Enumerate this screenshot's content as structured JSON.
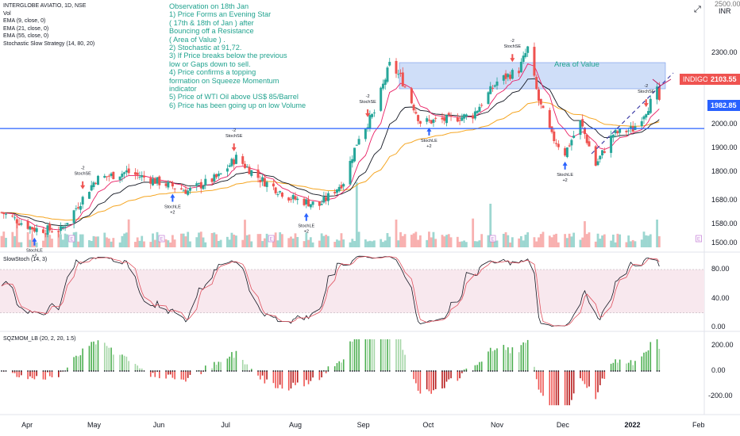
{
  "legend": {
    "symbol": "INTERGLOBE AVIATIO, 1D, NSE",
    "vol": "Vol",
    "ema9": "EMA (9, close, 0)",
    "ema21": "EMA (21, close, 0)",
    "ema55": "EMA (55, close, 0)",
    "strategy": "Stochastic Slow Strategy (14, 80, 20)"
  },
  "currency": "INR",
  "ticker_badge": "INDIGO",
  "last_price": "2103.55",
  "resistance_price": "1982.85",
  "top_partial_label": "2500.00",
  "area_label": "Area  of  Value",
  "notes": [
    "Observation on  18th  Jan",
    "1)  Price  Forms  an Evening Star",
    "( 17th  & 18th  of Jan )  after",
    "Bouncing  off  a Resistance",
    "( Area  of  Value  ) .",
    "2)   Stochastic  at  91,72.",
    "3)  If Price  breaks  below  the  previous",
    "low  or  Gaps down  to  sell.",
    "4)  Price  confirms  a  topping",
    "formation on Squeeze  Momentum",
    "indicator",
    "5) Price  of  WTI  Oil  above  US$ 85/Barrel",
    "6) Price  has  been  going up on low  Volume"
  ],
  "signals": {
    "le_label": "StochLE",
    "se_label": "StochSE",
    "qty_long": "+2",
    "qty_short": "-2"
  },
  "panes": {
    "slowstoch": "SlowStoch (14, 3)",
    "sqzmom": "SQZMOM_LB (20, 2, 20, 1.5)"
  },
  "colors": {
    "up": "#26a69a",
    "down": "#ef5350",
    "ema9": "#e91e63",
    "ema21": "#131722",
    "ema55": "#f5a623",
    "resistance": "#2962ff",
    "area": "#bbd0f5",
    "stoch_k": "#131722",
    "stoch_d": "#e0525f",
    "band": "#f8e8ee",
    "sqz_up_strong": "#4caf50",
    "sqz_up_weak": "#a5d6a7",
    "sqz_dn_strong": "#ef5350",
    "sqz_dn_weak": "#b71c1c"
  },
  "chart_data": [
    {
      "type": "candlestick",
      "title": "INTERGLOBE AVIATIO, 1D, NSE",
      "ylim": [
        1450,
        2500
      ],
      "y_ticks": [
        1500,
        1580,
        1680,
        1800,
        1900,
        2000,
        2300
      ],
      "y_tick_labels": [
        "1500.00",
        "1580.00",
        "1680.00",
        "1800.00",
        "1900.00",
        "2000.00",
        "2300.00"
      ],
      "x_labels": [
        "Apr",
        "May",
        "Jun",
        "Jul",
        "Aug",
        "Sep",
        "Oct",
        "Nov",
        "Dec",
        "2022",
        "Feb"
      ],
      "waypoints": [
        {
          "date": "2021-03-24",
          "close": 1630
        },
        {
          "date": "2021-04-08",
          "close": 1560
        },
        {
          "date": "2021-04-20",
          "close": 1555
        },
        {
          "date": "2021-05-06",
          "close": 1770
        },
        {
          "date": "2021-05-20",
          "close": 1800
        },
        {
          "date": "2021-06-03",
          "close": 1760
        },
        {
          "date": "2021-06-17",
          "close": 1720
        },
        {
          "date": "2021-07-01",
          "close": 1780
        },
        {
          "date": "2021-07-09",
          "close": 1860
        },
        {
          "date": "2021-07-20",
          "close": 1770
        },
        {
          "date": "2021-08-03",
          "close": 1690
        },
        {
          "date": "2021-08-16",
          "close": 1660
        },
        {
          "date": "2021-08-27",
          "close": 1760
        },
        {
          "date": "2021-09-03",
          "close": 1950
        },
        {
          "date": "2021-09-10",
          "close": 2050
        },
        {
          "date": "2021-09-17",
          "close": 2250
        },
        {
          "date": "2021-09-22",
          "close": 2200
        },
        {
          "date": "2021-10-01",
          "close": 2010
        },
        {
          "date": "2021-10-13",
          "close": 2020
        },
        {
          "date": "2021-10-25",
          "close": 2040
        },
        {
          "date": "2021-11-05",
          "close": 2180
        },
        {
          "date": "2021-11-15",
          "close": 2230
        },
        {
          "date": "2021-11-19",
          "close": 2320
        },
        {
          "date": "2021-11-24",
          "close": 2100
        },
        {
          "date": "2021-11-30",
          "close": 1950
        },
        {
          "date": "2021-12-06",
          "close": 1880
        },
        {
          "date": "2021-12-13",
          "close": 2010
        },
        {
          "date": "2021-12-20",
          "close": 1830
        },
        {
          "date": "2021-12-28",
          "close": 1960
        },
        {
          "date": "2022-01-06",
          "close": 1980
        },
        {
          "date": "2022-01-12",
          "close": 2060
        },
        {
          "date": "2022-01-17",
          "close": 2140
        },
        {
          "date": "2022-01-18",
          "close": 2103.55
        }
      ],
      "resistance": 1982.85,
      "area_of_value": [
        2150,
        2260
      ],
      "signals": [
        {
          "date": "2021-04-08",
          "type": "StochLE",
          "qty": "+2"
        },
        {
          "date": "2021-04-30",
          "type": "StochSE",
          "qty": "-2"
        },
        {
          "date": "2021-06-10",
          "type": "StochLE",
          "qty": "+2"
        },
        {
          "date": "2021-07-08",
          "type": "StochSE",
          "qty": "-2"
        },
        {
          "date": "2021-08-10",
          "type": "StochLE",
          "qty": "+2"
        },
        {
          "date": "2021-09-07",
          "type": "StochSE",
          "qty": "-2"
        },
        {
          "date": "2021-10-05",
          "type": "StochLE",
          "qty": "+2"
        },
        {
          "date": "2021-11-12",
          "type": "StochSE",
          "qty": "-2"
        },
        {
          "date": "2021-12-06",
          "type": "StochLE",
          "qty": "+2"
        },
        {
          "date": "2022-01-12",
          "type": "StochSE",
          "qty": "-2"
        }
      ]
    },
    {
      "type": "line",
      "title": "SlowStoch (14, 3)",
      "ylim": [
        0,
        110
      ],
      "y_ticks": [
        0,
        40,
        80
      ],
      "y_tick_labels": [
        "0.00",
        "40.00",
        "80.00"
      ],
      "bands": [
        20,
        80
      ],
      "last_values": [
        91,
        72
      ]
    },
    {
      "type": "bar",
      "title": "SQZMOM_LB (20, 2, 20, 1.5)",
      "ylim": [
        -280,
        260
      ],
      "y_ticks": [
        -200,
        0,
        200
      ],
      "y_tick_labels": [
        "-200.00",
        "0.00",
        "200.00"
      ]
    }
  ]
}
